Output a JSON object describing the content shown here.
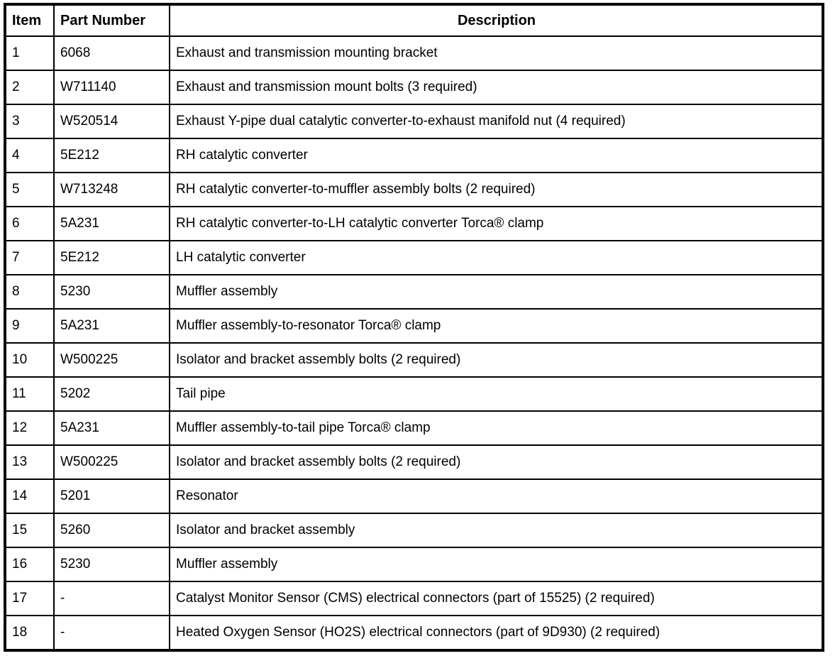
{
  "colors": {
    "background": "#ffffff",
    "border": "#000000",
    "text": "#000000"
  },
  "table": {
    "headers": [
      "Item",
      "Part Number",
      "Description"
    ],
    "rows": [
      {
        "item": "1",
        "part_number": "6068",
        "description": "Exhaust and transmission mounting bracket"
      },
      {
        "item": "2",
        "part_number": "W711140",
        "description": "Exhaust and transmission mount bolts (3 required)"
      },
      {
        "item": "3",
        "part_number": "W520514",
        "description": "Exhaust Y-pipe dual catalytic converter-to-exhaust manifold nut (4 required)"
      },
      {
        "item": "4",
        "part_number": "5E212",
        "description": "RH catalytic converter"
      },
      {
        "item": "5",
        "part_number": "W713248",
        "description": "RH catalytic converter-to-muffler assembly bolts (2 required)"
      },
      {
        "item": "6",
        "part_number": "5A231",
        "description": "RH catalytic converter-to-LH catalytic converter Torca® clamp"
      },
      {
        "item": "7",
        "part_number": "5E212",
        "description": "LH catalytic converter"
      },
      {
        "item": "8",
        "part_number": "5230",
        "description": "Muffler assembly"
      },
      {
        "item": "9",
        "part_number": "5A231",
        "description": "Muffler assembly-to-resonator Torca® clamp"
      },
      {
        "item": "10",
        "part_number": "W500225",
        "description": "Isolator and bracket assembly bolts (2 required)"
      },
      {
        "item": "11",
        "part_number": "5202",
        "description": "Tail pipe"
      },
      {
        "item": "12",
        "part_number": "5A231",
        "description": "Muffler assembly-to-tail pipe Torca® clamp"
      },
      {
        "item": "13",
        "part_number": "W500225",
        "description": "Isolator and bracket assembly bolts (2 required)"
      },
      {
        "item": "14",
        "part_number": "5201",
        "description": "Resonator"
      },
      {
        "item": "15",
        "part_number": "5260",
        "description": "Isolator and bracket assembly"
      },
      {
        "item": "16",
        "part_number": "5230",
        "description": "Muffler assembly"
      },
      {
        "item": "17",
        "part_number": "-",
        "description": "Catalyst Monitor Sensor (CMS) electrical connectors (part of 15525) (2 required)"
      },
      {
        "item": "18",
        "part_number": "-",
        "description": "Heated Oxygen Sensor (HO2S) electrical connectors (part of 9D930) (2 required)"
      }
    ]
  }
}
